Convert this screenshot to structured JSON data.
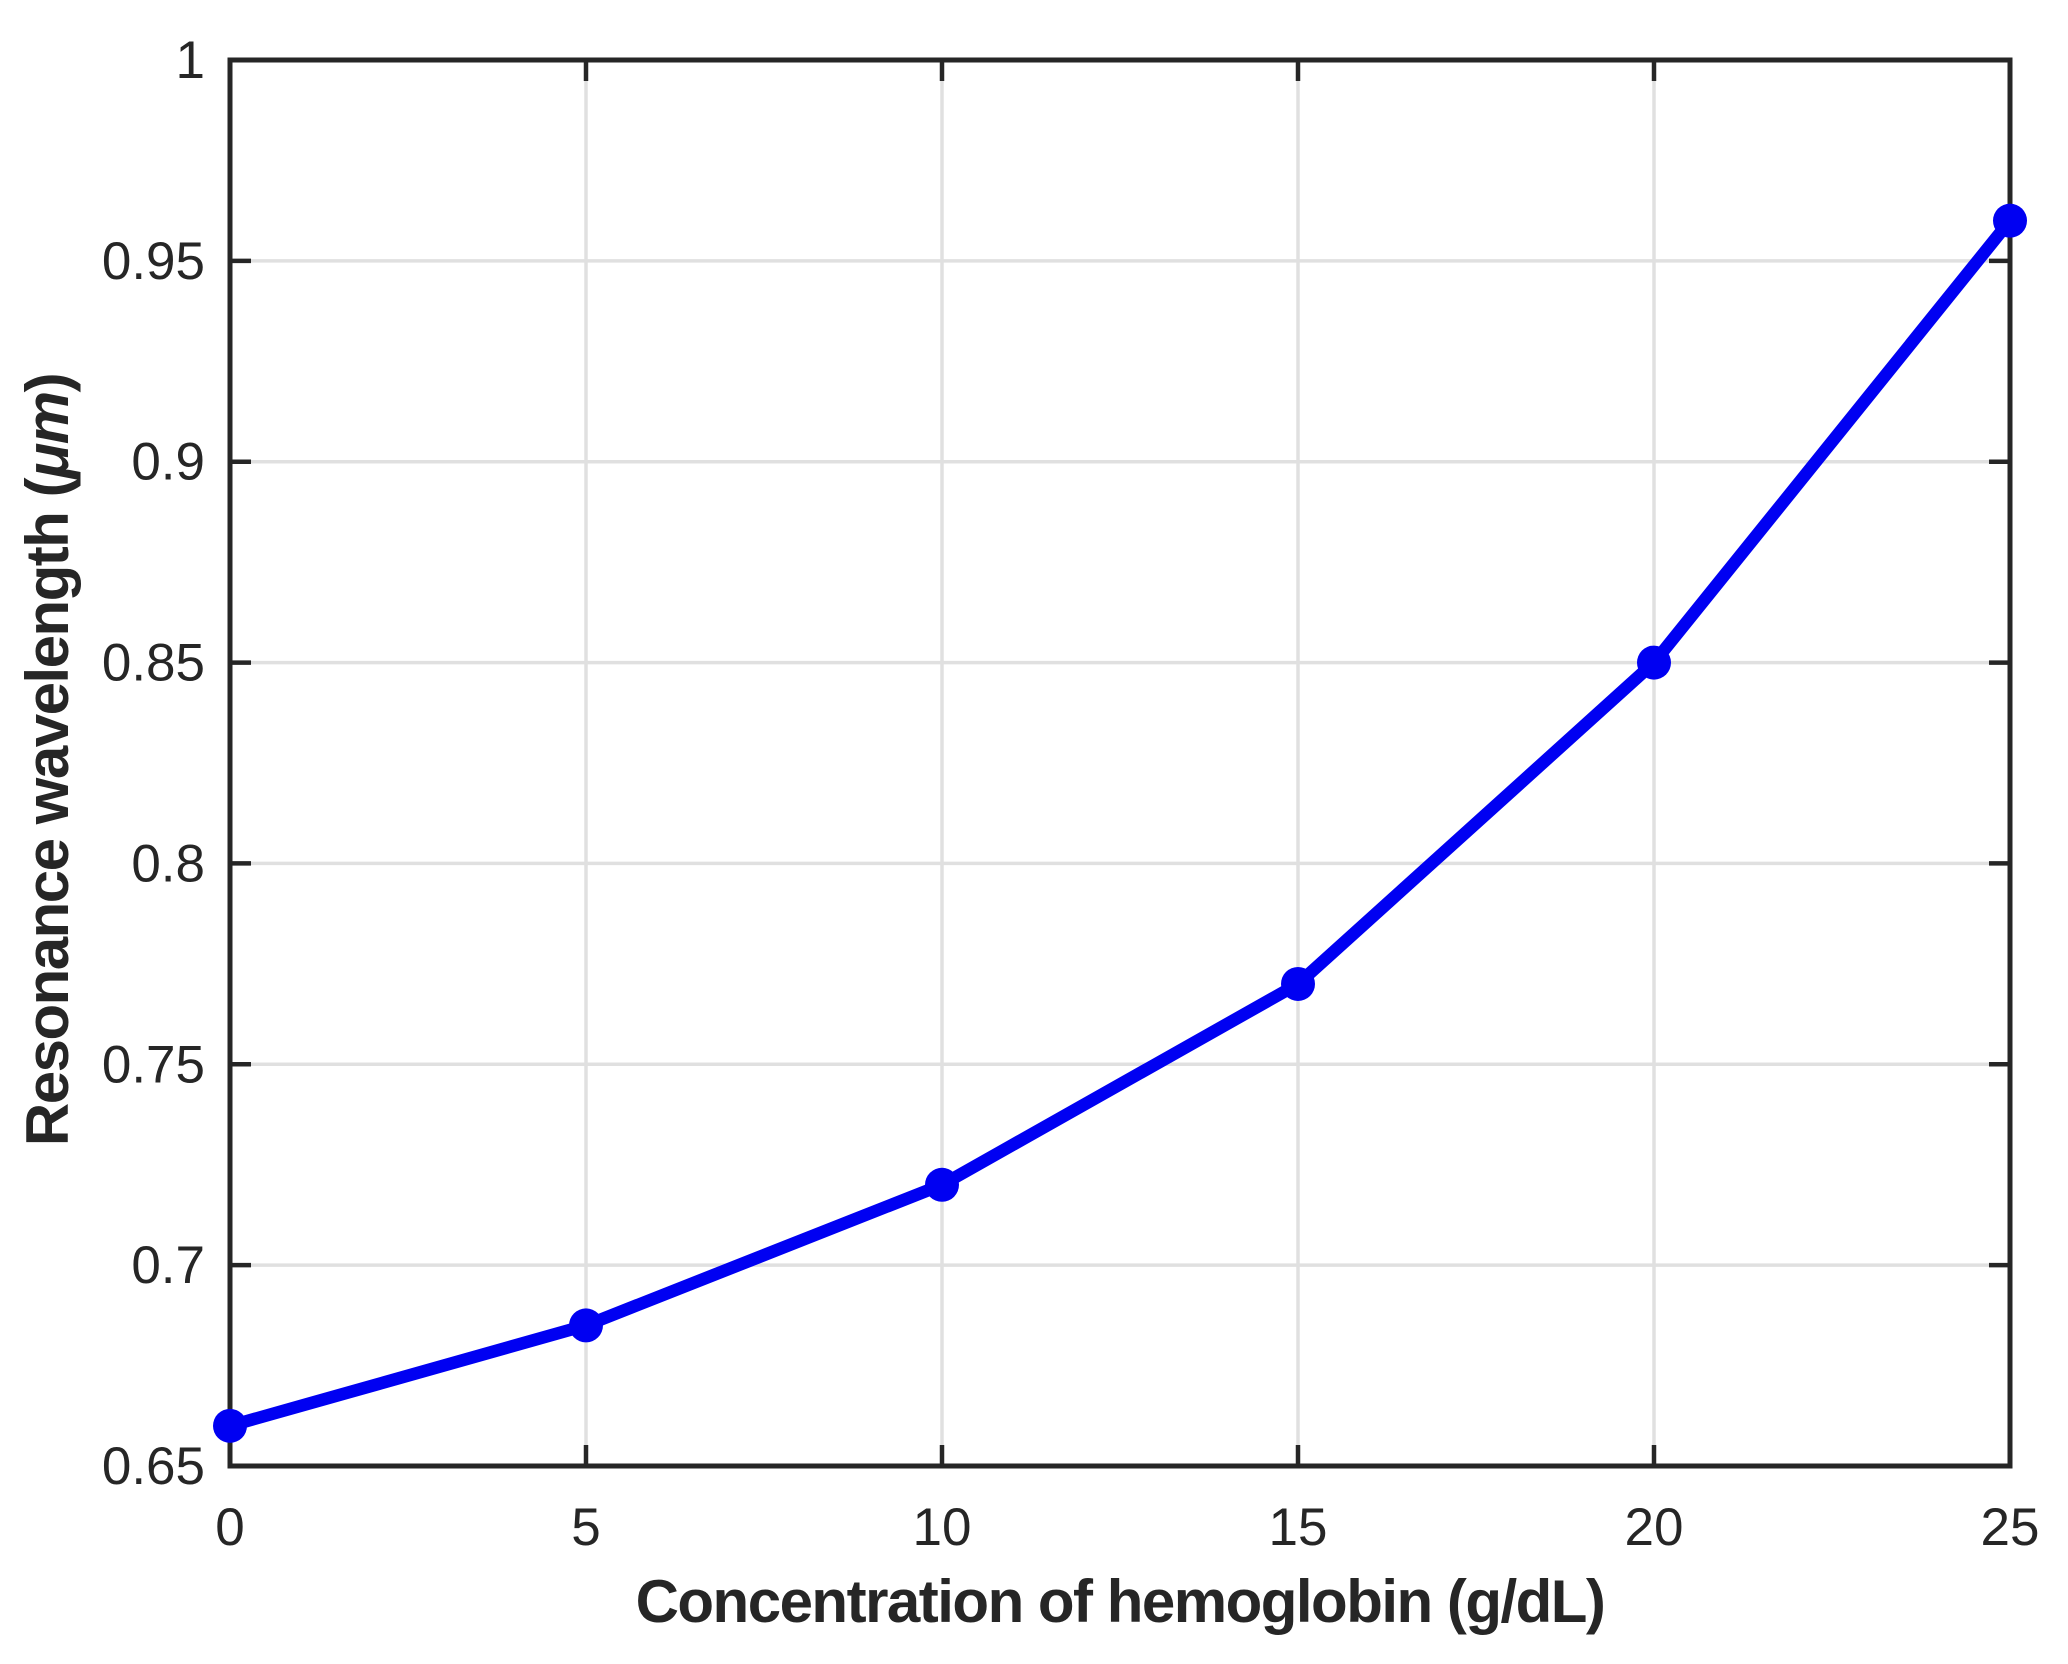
{
  "figure": {
    "background": "#ffffff"
  },
  "chart_data": {
    "type": "line",
    "title": "",
    "xlabel": "Concentration of hemoglobin (g/dL)",
    "ylabel": "Resonance wavelength (μm)",
    "ylabel_parts": {
      "prefix": "Resonance wavelength (",
      "unit_italic": "μm",
      "suffix": ")"
    },
    "x": [
      0,
      5,
      10,
      15,
      20,
      25
    ],
    "series": [
      {
        "name": "resonance-wavelength",
        "values": [
          0.66,
          0.685,
          0.72,
          0.77,
          0.85,
          0.96
        ],
        "color": "#0000f2",
        "marker": "filled-circle"
      }
    ],
    "xlim": [
      0,
      25
    ],
    "ylim": [
      0.65,
      1
    ],
    "xticks": {
      "values": [
        0,
        5,
        10,
        15,
        20,
        25
      ],
      "labels": [
        "0",
        "5",
        "10",
        "15",
        "20",
        "25"
      ]
    },
    "yticks": {
      "values": [
        0.65,
        0.7,
        0.75,
        0.8,
        0.85,
        0.9,
        0.95,
        1
      ],
      "labels": [
        "0.65",
        "0.7",
        "0.75",
        "0.8",
        "0.85",
        "0.9",
        "0.95",
        "1"
      ]
    },
    "grid": "on",
    "legend": "none",
    "axis_color": "#262626",
    "grid_color": "#e0e0e0",
    "tick_direction": "in"
  }
}
